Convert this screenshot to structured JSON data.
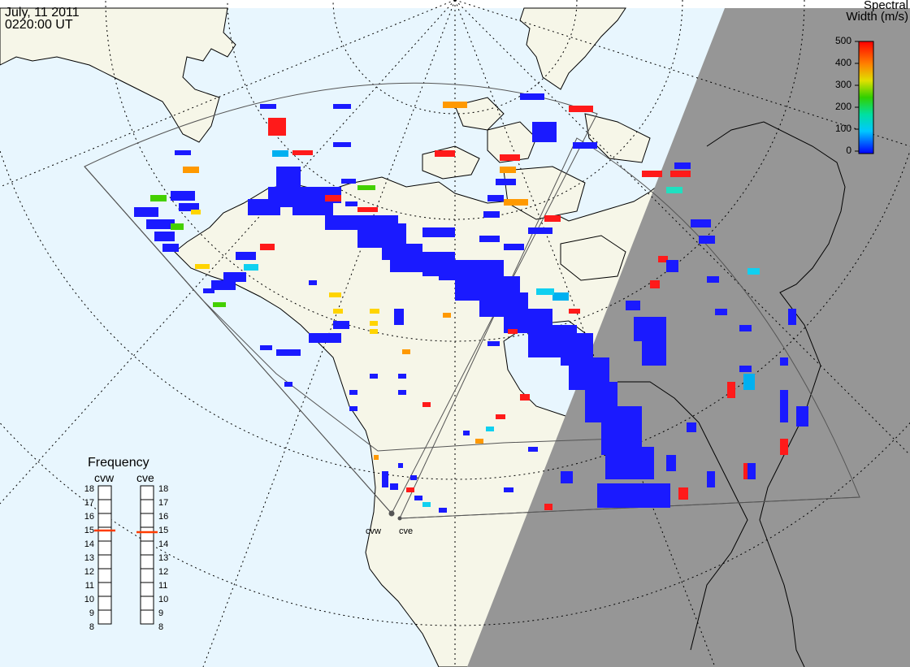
{
  "header": {
    "date": "July, 11 2011",
    "time": "0220:00 UT"
  },
  "colorbar": {
    "title_line1": "Spectral",
    "title_line2": "Width (m/s)",
    "ticks": [
      "500",
      "400",
      "300",
      "200",
      "100",
      "0"
    ],
    "scale_colors": [
      "#0000ff",
      "#00c8ff",
      "#00e0a0",
      "#30d000",
      "#e0e000",
      "#ff8000",
      "#ff0000"
    ],
    "vmin": 0,
    "vmax": 500
  },
  "frequency_panel": {
    "title": "Frequency",
    "radars": [
      {
        "name": "cvw",
        "selected_mhz": 15
      },
      {
        "name": "cve",
        "selected_mhz": 15
      }
    ],
    "scale": [
      "18",
      "17",
      "16",
      "15",
      "14",
      "13",
      "12",
      "11",
      "10",
      "9",
      "8"
    ],
    "marker_color": "#ff3c00"
  },
  "sites": [
    {
      "name": "cvw"
    },
    {
      "name": "cve"
    }
  ],
  "colors": {
    "ocean": "#e8f6fe",
    "land": "#f6f6e8",
    "night": "#969696",
    "coast": "#000000",
    "grid": "#000000"
  }
}
